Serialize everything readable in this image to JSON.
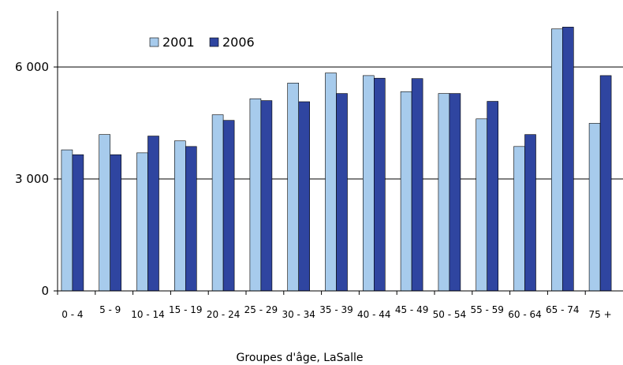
{
  "chart_data": {
    "type": "bar",
    "title": "",
    "xlabel": "Groupes d'âge, LaSalle",
    "ylabel": "",
    "ylim": [
      0,
      7500
    ],
    "yticks": [
      0,
      3000,
      6000
    ],
    "ytick_labels": [
      "0",
      "3 000",
      "6 000"
    ],
    "grid": "horizontal at 3000 and 6000",
    "legend_placement": "top-left",
    "categories": [
      "0 - 4",
      "5 - 9",
      "10 - 14",
      "15 - 19",
      "20 - 24",
      "25 - 29",
      "30 - 34",
      "35 - 39",
      "40 - 44",
      "45 - 49",
      "50 - 54",
      "55 - 59",
      "60 - 64",
      "65 - 74",
      "75 +"
    ],
    "series": [
      {
        "name": "2001",
        "color": "#a7cbec",
        "values": [
          3780,
          4190,
          3700,
          4020,
          4720,
          5150,
          5570,
          5840,
          5770,
          5340,
          5290,
          4610,
          3870,
          7020,
          4490
        ]
      },
      {
        "name": "2006",
        "color": "#2f45a0",
        "values": [
          3650,
          3650,
          4150,
          3870,
          4570,
          5100,
          5070,
          5290,
          5700,
          5690,
          5290,
          5080,
          4190,
          7070,
          5770
        ]
      }
    ]
  }
}
